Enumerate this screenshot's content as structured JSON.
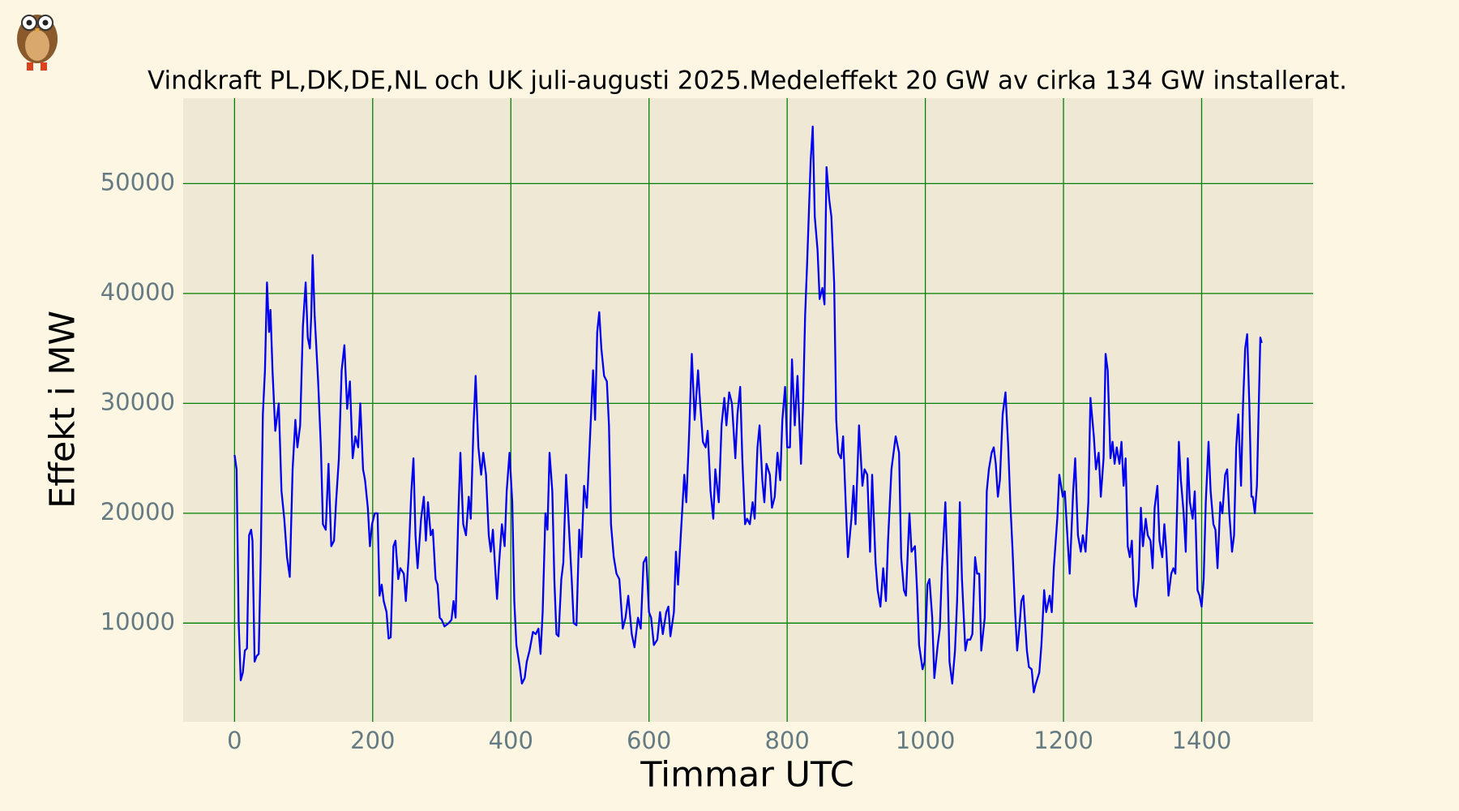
{
  "chart_data": {
    "type": "line",
    "title": "Vindkraft PL,DK,DE,NL och UK juli-augusti 2025.Medeleffekt 20 GW av cirka 134 GW installerat.",
    "xlabel": "Timmar UTC",
    "ylabel": "Effekt i MW",
    "color": "#0000ee",
    "grid": true,
    "grid_color": "#008000",
    "xlim": [
      -74.35,
      1561.35
    ],
    "ylim": [
      1020,
      57780
    ],
    "xticks": [
      0,
      200,
      400,
      600,
      800,
      1000,
      1200,
      1400
    ],
    "yticks": [
      10000,
      20000,
      30000,
      40000,
      50000
    ],
    "x": [
      0,
      3,
      6,
      9,
      12,
      15,
      18,
      21,
      24,
      26,
      29,
      32,
      35,
      38,
      41,
      44,
      47,
      50,
      52,
      55,
      59,
      64,
      68,
      72,
      76,
      80,
      84,
      88,
      91,
      95,
      99,
      103,
      106,
      109,
      111,
      113,
      116,
      121,
      125,
      128,
      132,
      136,
      140,
      144,
      147,
      151,
      155,
      159,
      163,
      167,
      171,
      175,
      179,
      182,
      186,
      189,
      193,
      196,
      199,
      203,
      207,
      210,
      213,
      216,
      220,
      223,
      226,
      230,
      233,
      237,
      240,
      245,
      248,
      252,
      256,
      259,
      262,
      265,
      270,
      274,
      277,
      280,
      284,
      287,
      291,
      294,
      297,
      300,
      304,
      310,
      314,
      317,
      320,
      324,
      327,
      331,
      335,
      339,
      342,
      346,
      349,
      353,
      357,
      360,
      364,
      368,
      371,
      374,
      380,
      383,
      387,
      391,
      394,
      398,
      402,
      405,
      408,
      413,
      416,
      420,
      423,
      427,
      432,
      436,
      440,
      443,
      446,
      450,
      453,
      456,
      460,
      463,
      466,
      469,
      473,
      476,
      480,
      483,
      488,
      491,
      495,
      499,
      502,
      506,
      510,
      515,
      519,
      522,
      525,
      528,
      531,
      535,
      539,
      542,
      545,
      549,
      553,
      557,
      562,
      566,
      570,
      575,
      579,
      584,
      588,
      592,
      596,
      600,
      603,
      607,
      612,
      616,
      620,
      625,
      628,
      631,
      636,
      639,
      642,
      646,
      651,
      654,
      658,
      662,
      666,
      671,
      674,
      678,
      682,
      685,
      689,
      693,
      696,
      701,
      705,
      709,
      712,
      716,
      720,
      725,
      728,
      732,
      735,
      739,
      742,
      746,
      750,
      753,
      757,
      760,
      764,
      767,
      770,
      775,
      778,
      782,
      786,
      790,
      793,
      797,
      800,
      804,
      807,
      811,
      815,
      820,
      823,
      826,
      829,
      834,
      837,
      840,
      844,
      847,
      851,
      854,
      857,
      861,
      864,
      868,
      871,
      874,
      878,
      881,
      885,
      888,
      893,
      896,
      899,
      904,
      909,
      912,
      916,
      920,
      923,
      928,
      931,
      935,
      939,
      943,
      946,
      951,
      954,
      957,
      962,
      965,
      969,
      972,
      977,
      980,
      985,
      988,
      991,
      996,
      999,
      1003,
      1006,
      1010,
      1013,
      1018,
      1021,
      1024,
      1029,
      1032,
      1035,
      1039,
      1043,
      1046,
      1050,
      1053,
      1058,
      1061,
      1065,
      1068,
      1072,
      1075,
      1078,
      1081,
      1086,
      1089,
      1092,
      1096,
      1099,
      1102,
      1105,
      1108,
      1112,
      1116,
      1120,
      1123,
      1126,
      1130,
      1133,
      1136,
      1139,
      1142,
      1147,
      1150,
      1154,
      1157,
      1160,
      1165,
      1168,
      1172,
      1175,
      1180,
      1183,
      1186,
      1191,
      1194,
      1199,
      1202,
      1206,
      1209,
      1214,
      1217,
      1221,
      1225,
      1228,
      1232,
      1236,
      1239,
      1244,
      1247,
      1251,
      1254,
      1258,
      1261,
      1264,
      1268,
      1271,
      1274,
      1277,
      1281,
      1284,
      1287,
      1290,
      1293,
      1296,
      1299,
      1302,
      1305,
      1309,
      1312,
      1315,
      1319,
      1322,
      1326,
      1329,
      1332,
      1336,
      1339,
      1343,
      1346,
      1349,
      1352,
      1356,
      1359,
      1362,
      1367,
      1370,
      1374,
      1377,
      1380,
      1383,
      1387,
      1390,
      1394,
      1397,
      1400,
      1403,
      1406,
      1410,
      1413,
      1417,
      1420,
      1423,
      1427,
      1430,
      1434,
      1437,
      1440,
      1444,
      1447,
      1450,
      1453,
      1457,
      1460,
      1463,
      1466,
      1469,
      1472,
      1474,
      1477,
      1480,
      1482,
      1485,
      1487
    ],
    "values": [
      25300,
      24000,
      10000,
      4800,
      5500,
      7500,
      7700,
      18000,
      18500,
      17500,
      6500,
      7000,
      7200,
      16000,
      29000,
      33000,
      41000,
      36500,
      38500,
      33000,
      27500,
      30000,
      22000,
      19500,
      16000,
      14200,
      24000,
      28500,
      26000,
      28000,
      37000,
      41000,
      36000,
      35000,
      38000,
      43500,
      38000,
      32000,
      26000,
      19000,
      18500,
      24500,
      17000,
      17500,
      21000,
      25000,
      33000,
      35300,
      29500,
      32000,
      25000,
      27000,
      26000,
      30000,
      24000,
      23000,
      20500,
      17000,
      19000,
      20000,
      20000,
      12500,
      13500,
      12000,
      11000,
      8600,
      8700,
      17000,
      17500,
      14000,
      15000,
      14500,
      12000,
      16000,
      22000,
      25000,
      18000,
      15000,
      19500,
      21500,
      17500,
      21000,
      18000,
      18500,
      14000,
      13500,
      10500,
      10300,
      9700,
      10000,
      10300,
      12000,
      10500,
      20000,
      25500,
      19000,
      18000,
      21500,
      19500,
      28000,
      32500,
      26000,
      23500,
      25500,
      23500,
      18000,
      16500,
      18500,
      12200,
      15500,
      19000,
      17000,
      22000,
      25500,
      21000,
      12000,
      8000,
      6000,
      4500,
      5000,
      6500,
      7500,
      9200,
      9000,
      9500,
      7200,
      11000,
      20000,
      18500,
      25500,
      22000,
      14000,
      9000,
      8800,
      14000,
      15500,
      23500,
      20000,
      14000,
      10000,
      9800,
      18500,
      16000,
      22500,
      20500,
      27500,
      33000,
      28500,
      36500,
      38300,
      35000,
      32500,
      32000,
      28000,
      19000,
      16000,
      14500,
      14000,
      9500,
      10500,
      12500,
      9000,
      7800,
      10500,
      9500,
      15500,
      16000,
      11000,
      10500,
      8000,
      8500,
      11000,
      9000,
      11000,
      11500,
      8800,
      11000,
      16500,
      13500,
      18000,
      23500,
      21000,
      27000,
      34500,
      28500,
      33000,
      30000,
      26500,
      26000,
      27500,
      22000,
      19500,
      24000,
      21000,
      28000,
      30500,
      28000,
      31000,
      30000,
      25000,
      29000,
      31500,
      25000,
      19000,
      19500,
      19000,
      21000,
      19500,
      26000,
      28000,
      23000,
      21000,
      24500,
      23500,
      20500,
      21500,
      25500,
      23000,
      28500,
      31500,
      26000,
      26000,
      34000,
      28000,
      32500,
      24500,
      30000,
      38000,
      43000,
      52000,
      55200,
      47000,
      44000,
      39500,
      40500,
      39000,
      51500,
      48500,
      47000,
      41000,
      28500,
      25500,
      25000,
      27000,
      20500,
      16000,
      19500,
      22500,
      19000,
      28000,
      22500,
      24000,
      23500,
      16500,
      23500,
      15500,
      13000,
      11500,
      15000,
      12000,
      17500,
      24000,
      25500,
      27000,
      25500,
      16000,
      13000,
      12500,
      20000,
      16500,
      17000,
      13000,
      8000,
      5800,
      6500,
      13500,
      14000,
      10500,
      5000,
      8000,
      9500,
      15000,
      21000,
      15000,
      6500,
      4500,
      7500,
      12000,
      21000,
      14000,
      7500,
      8500,
      8500,
      9000,
      16000,
      14500,
      14500,
      7500,
      10500,
      22000,
      24000,
      25500,
      26000,
      24500,
      21500,
      23000,
      29000,
      31000,
      26000,
      21000,
      17000,
      11000,
      7500,
      9500,
      12000,
      12500,
      7500,
      6000,
      5800,
      3700,
      4500,
      5500,
      8000,
      13000,
      11000,
      12500,
      11000,
      15000,
      19500,
      23500,
      21500,
      22000,
      17500,
      14500,
      22000,
      25000,
      18000,
      16500,
      18000,
      16500,
      21000,
      30500,
      27000,
      24000,
      25500,
      21500,
      25000,
      34500,
      33000,
      25000,
      26500,
      24500,
      26000,
      24500,
      26500,
      22500,
      25000,
      17000,
      16000,
      17500,
      12500,
      11500,
      14000,
      20500,
      17000,
      19500,
      18000,
      17500,
      15000,
      20500,
      22500,
      17500,
      16000,
      19000,
      16500,
      12500,
      14500,
      15000,
      14500,
      26500,
      23000,
      20000,
      16500,
      25000,
      21000,
      19500,
      22000,
      13000,
      12500,
      11500,
      14000,
      21000,
      26500,
      22000,
      19000,
      18500,
      15000,
      21000,
      20000,
      23500,
      24000,
      20000,
      16500,
      18000,
      26000,
      29000,
      22500,
      30000,
      35000,
      36300,
      30000,
      21500,
      21500,
      20000,
      22500,
      28000,
      36000,
      35500
    ]
  }
}
